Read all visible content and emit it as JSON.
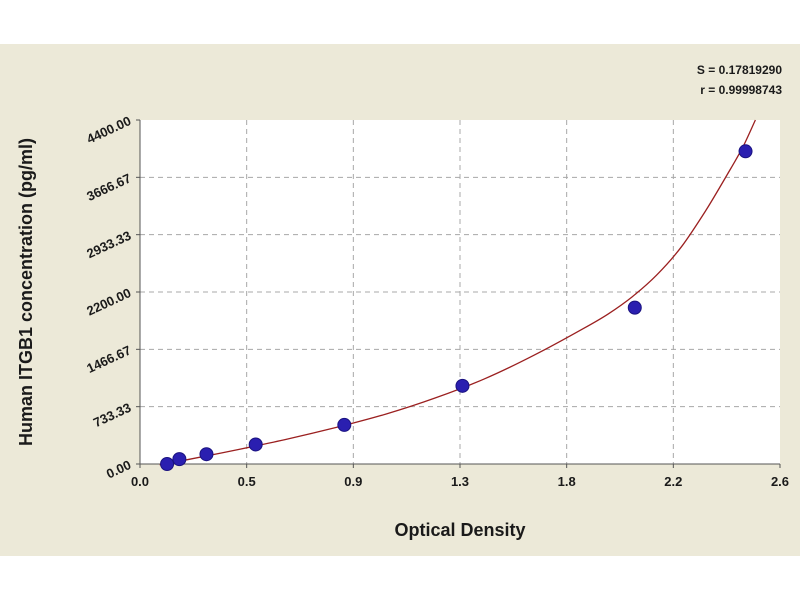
{
  "chart_data": {
    "type": "scatter",
    "xlabel": "Optical Density",
    "ylabel": "Human ITGB1 concentration (pg/ml)",
    "xlim": [
      0.0,
      2.6
    ],
    "ylim": [
      0,
      4400
    ],
    "x_ticks": [
      "0.0",
      "0.5",
      "0.9",
      "1.3",
      "1.8",
      "2.2",
      "2.6"
    ],
    "y_ticks": [
      "0.00",
      "733.33",
      "1466.67",
      "2200.00",
      "2933.33",
      "3666.67",
      "4400.00"
    ],
    "grid": true,
    "stats": [
      "S = 0.17819290",
      "r = 0.99998743"
    ],
    "colors": {
      "points": "#2a1fb0",
      "curve": "#9b2020",
      "background": "#ece9d8",
      "plot_area": "#ffffff",
      "grid": "#a8a8a8"
    },
    "points": [
      {
        "x": 0.11,
        "y": 0
      },
      {
        "x": 0.16,
        "y": 62.5
      },
      {
        "x": 0.27,
        "y": 125
      },
      {
        "x": 0.47,
        "y": 250
      },
      {
        "x": 0.83,
        "y": 500
      },
      {
        "x": 1.31,
        "y": 1000
      },
      {
        "x": 2.01,
        "y": 2000
      },
      {
        "x": 2.46,
        "y": 4000
      }
    ],
    "curve": [
      [
        0.08,
        -10
      ],
      [
        0.2,
        60
      ],
      [
        0.4,
        185
      ],
      [
        0.6,
        320
      ],
      [
        0.8,
        470
      ],
      [
        1.0,
        640
      ],
      [
        1.2,
        845
      ],
      [
        1.4,
        1090
      ],
      [
        1.6,
        1390
      ],
      [
        1.8,
        1730
      ],
      [
        1.9,
        1915
      ],
      [
        2.0,
        2140
      ],
      [
        2.1,
        2420
      ],
      [
        2.2,
        2780
      ],
      [
        2.3,
        3250
      ],
      [
        2.4,
        3780
      ],
      [
        2.45,
        4060
      ],
      [
        2.5,
        4400
      ]
    ]
  }
}
